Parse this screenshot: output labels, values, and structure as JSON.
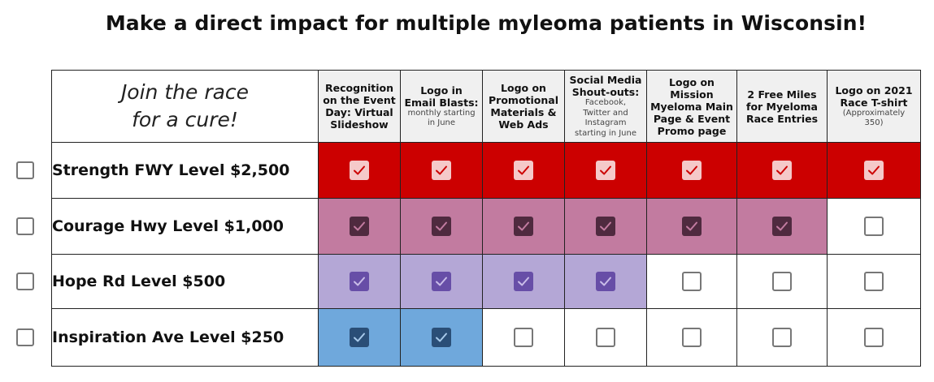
{
  "title": "Make a direct impact for multiple myleoma patients in Wisconsin!",
  "tagline": [
    "Join the race",
    "for a cure!"
  ],
  "columns": [
    {
      "heading": [
        "Recognition",
        "on the Event",
        "Day: Virtual",
        "Slideshow"
      ],
      "sub": []
    },
    {
      "heading": [
        "Logo in",
        "Email Blasts:"
      ],
      "sub": [
        "monthly starting",
        "in June"
      ]
    },
    {
      "heading": [
        "Logo on",
        "Promotional",
        "Materials &",
        "Web Ads"
      ],
      "sub": []
    },
    {
      "heading": [
        "Social Media",
        "Shout-outs:"
      ],
      "sub": [
        "Facebook,",
        "Twitter and",
        "Instagram",
        "starting in June"
      ]
    },
    {
      "heading": [
        "Logo on",
        "Mission",
        "Myeloma Main",
        "Page & Event",
        "Promo page"
      ],
      "sub": []
    },
    {
      "heading": [
        "2 Free Miles",
        "for Myeloma",
        "Race Entries"
      ],
      "sub": []
    },
    {
      "heading": [
        "Logo on 2021",
        "Race T-shirt"
      ],
      "sub": [
        "(Approximately",
        "350)"
      ]
    }
  ],
  "levels": [
    {
      "label": "Strength FWY Level $2,500",
      "color": "#cc0000",
      "box_color": "#f5c9c9",
      "check_color": "#cc0000",
      "benefits": [
        true,
        true,
        true,
        true,
        true,
        true,
        true
      ]
    },
    {
      "label": "Courage Hwy Level $1,000",
      "color": "#c27ba0",
      "box_color": "#4f2a3f",
      "check_color": "#c27ba0",
      "benefits": [
        true,
        true,
        true,
        true,
        true,
        true,
        false
      ]
    },
    {
      "label": "Hope Rd Level $500",
      "color": "#b4a7d6",
      "box_color": "#674ea7",
      "check_color": "#c9bce8",
      "benefits": [
        true,
        true,
        true,
        true,
        false,
        false,
        false
      ]
    },
    {
      "label": "Inspiration Ave Level $250",
      "color": "#6fa8dc",
      "box_color": "#2a4e77",
      "check_color": "#a7c9ea",
      "benefits": [
        true,
        true,
        false,
        false,
        false,
        false,
        false
      ]
    }
  ]
}
